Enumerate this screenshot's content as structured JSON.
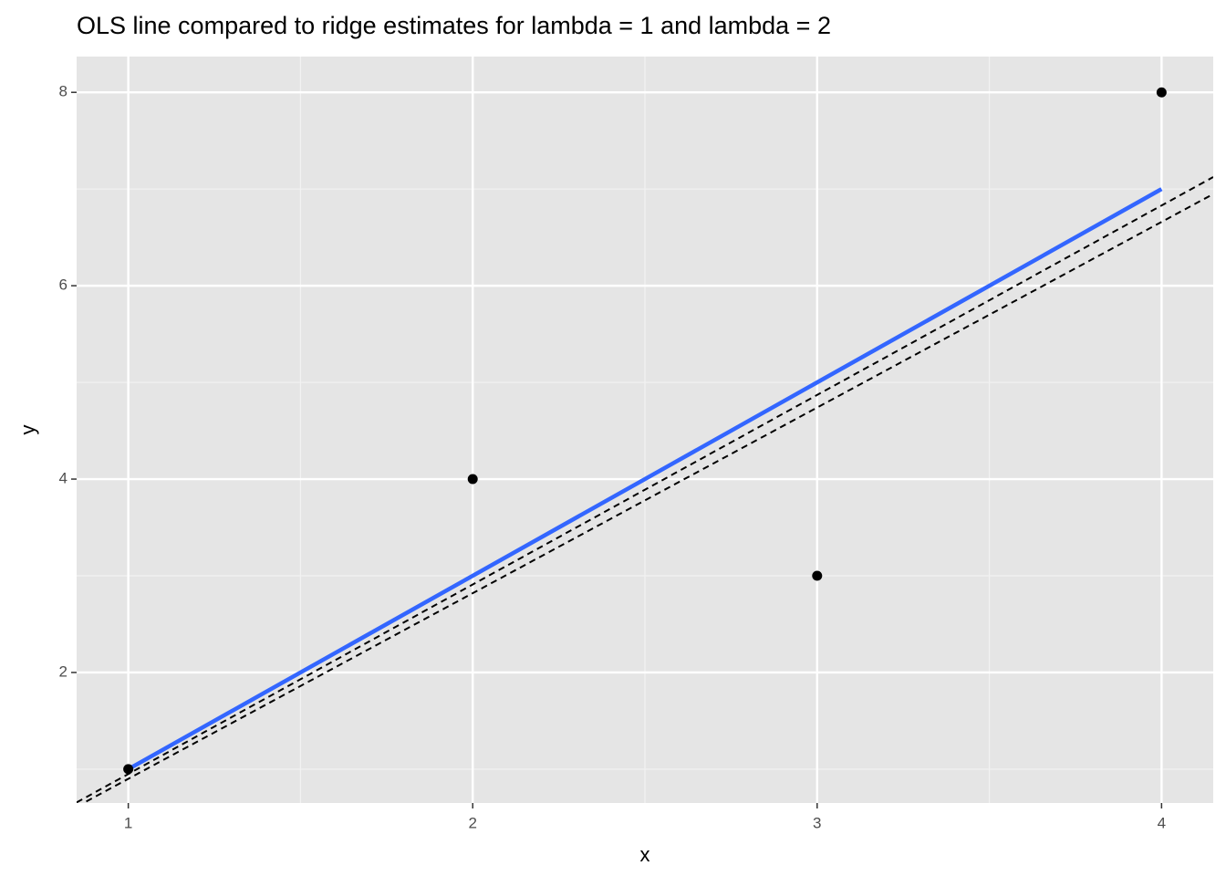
{
  "chart_data": {
    "type": "scatter",
    "title": "OLS line compared to ridge estimates for lambda = 1 and lambda = 2",
    "x_label": "x",
    "y_label": "y",
    "points": {
      "x": [
        1,
        2,
        3,
        4
      ],
      "y": [
        1,
        4,
        3,
        8
      ],
      "color": "#000000"
    },
    "ols_line": {
      "x": [
        1,
        4
      ],
      "y": [
        1,
        7
      ],
      "color": "#3366ff"
    },
    "ridge_lines": [
      {
        "intercept": -1.01,
        "slope": 1.96
      },
      {
        "intercept": -1.02,
        "slope": 1.92
      }
    ],
    "ridge_color": "#000000",
    "xlim": [
      0.85,
      4.15
    ],
    "ylim": [
      0.65,
      8.37
    ],
    "xticks": [
      1,
      2,
      3,
      4
    ],
    "yticks": [
      2,
      4,
      6,
      8
    ],
    "x_minor_grid": [
      1.5,
      2.5,
      3.5
    ],
    "y_minor_grid": [
      1,
      3,
      5,
      7
    ],
    "grid": true
  }
}
